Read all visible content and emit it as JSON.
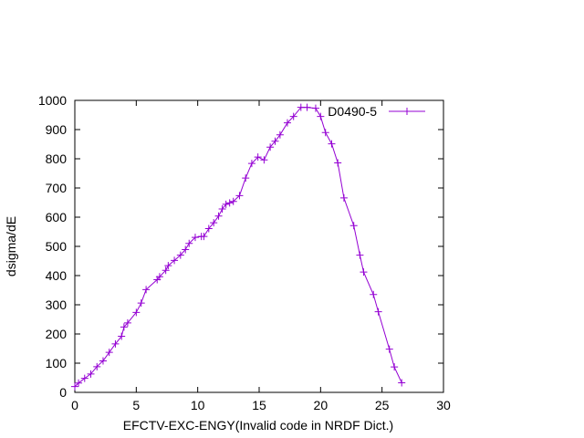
{
  "chart_data": {
    "type": "line",
    "xlabel": "EFCTV-EXC-ENGY(Invalid code in NRDF Dict.)",
    "ylabel": "dsigma/dE",
    "xlim": [
      0,
      30
    ],
    "ylim": [
      0,
      1000
    ],
    "xticks": [
      0,
      5,
      10,
      15,
      20,
      25,
      30
    ],
    "yticks": [
      0,
      100,
      200,
      300,
      400,
      500,
      600,
      700,
      800,
      900,
      1000
    ],
    "grid": false,
    "legend_position": "top-right",
    "series": [
      {
        "name": "D0490-5",
        "color": "#9400d3",
        "marker": "plus",
        "x": [
          0.0,
          0.3,
          0.8,
          1.3,
          1.8,
          2.3,
          2.8,
          3.3,
          3.8,
          4.0,
          4.3,
          5.0,
          5.4,
          5.8,
          6.7,
          6.9,
          7.4,
          7.6,
          8.1,
          8.6,
          9.0,
          9.3,
          9.8,
          10.3,
          10.5,
          10.9,
          11.3,
          11.7,
          12.0,
          12.3,
          12.6,
          12.9,
          13.4,
          13.9,
          14.4,
          14.9,
          15.4,
          15.9,
          16.3,
          16.7,
          17.3,
          17.8,
          18.4,
          18.9,
          19.6,
          20.0,
          20.4,
          20.9,
          21.4,
          21.9,
          22.7,
          23.2,
          23.5,
          24.3,
          24.7,
          25.6,
          26.0,
          26.6
        ],
        "y": [
          20,
          32,
          48,
          63,
          88,
          108,
          137,
          166,
          192,
          224,
          238,
          274,
          306,
          352,
          386,
          396,
          418,
          434,
          452,
          470,
          489,
          510,
          531,
          534,
          534,
          561,
          581,
          604,
          628,
          644,
          649,
          654,
          674,
          734,
          784,
          806,
          796,
          840,
          860,
          882,
          923,
          945,
          976,
          976,
          973,
          945,
          890,
          851,
          786,
          666,
          571,
          470,
          412,
          335,
          276,
          148,
          87,
          33
        ]
      }
    ]
  }
}
